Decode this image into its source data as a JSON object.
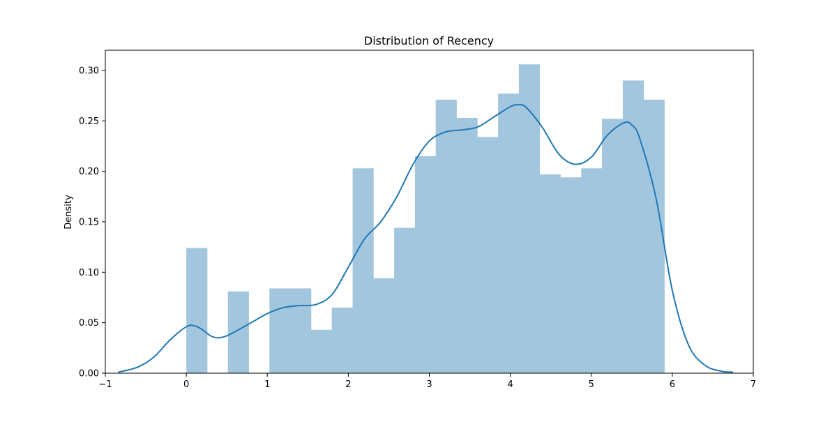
{
  "chart_data": {
    "type": "bar",
    "title": "Distribution of Recency",
    "xlabel": "",
    "ylabel": "Density",
    "xlim": [
      -1,
      7
    ],
    "ylim": [
      0,
      0.32
    ],
    "xticks": [
      "−1",
      "0",
      "1",
      "2",
      "3",
      "4",
      "5",
      "6",
      "7"
    ],
    "xtick_values": [
      -1,
      0,
      1,
      2,
      3,
      4,
      5,
      6,
      7
    ],
    "yticks": [
      "0.00",
      "0.05",
      "0.10",
      "0.15",
      "0.20",
      "0.25",
      "0.30"
    ],
    "ytick_values": [
      0,
      0.05,
      0.1,
      0.15,
      0.2,
      0.25,
      0.3
    ],
    "grid": false,
    "histogram": {
      "bin_edges": [
        0,
        0.2566,
        0.5132,
        0.7698,
        1.0264,
        1.283,
        1.5396,
        1.7962,
        2.0528,
        2.3094,
        2.566,
        2.8226,
        3.0792,
        3.3358,
        3.5924,
        3.849,
        4.1056,
        4.3622,
        4.6188,
        4.8754,
        5.132,
        5.3886,
        5.6452,
        5.9018
      ],
      "values": [
        0.124,
        0,
        0.081,
        0,
        0.084,
        0.084,
        0.043,
        0.065,
        0.203,
        0.094,
        0.144,
        0.215,
        0.271,
        0.253,
        0.234,
        0.277,
        0.306,
        0.197,
        0.194,
        0.203,
        0.252,
        0.29,
        0.271
      ],
      "color": "#a3c6df"
    },
    "kde": {
      "x": [
        -0.84,
        -0.6,
        -0.4,
        -0.2,
        0.0,
        0.1,
        0.2,
        0.3,
        0.4,
        0.5,
        0.6,
        0.8,
        1.0,
        1.2,
        1.4,
        1.6,
        1.8,
        2.0,
        2.2,
        2.4,
        2.6,
        2.8,
        3.0,
        3.2,
        3.4,
        3.6,
        3.8,
        4.0,
        4.1,
        4.2,
        4.4,
        4.6,
        4.8,
        5.0,
        5.2,
        5.4,
        5.5,
        5.6,
        5.8,
        6.0,
        6.2,
        6.4,
        6.6,
        6.75
      ],
      "y": [
        0.001,
        0.006,
        0.016,
        0.033,
        0.046,
        0.047,
        0.043,
        0.037,
        0.035,
        0.037,
        0.041,
        0.05,
        0.059,
        0.065,
        0.067,
        0.068,
        0.078,
        0.105,
        0.133,
        0.15,
        0.175,
        0.207,
        0.23,
        0.239,
        0.241,
        0.244,
        0.254,
        0.264,
        0.266,
        0.263,
        0.243,
        0.217,
        0.207,
        0.214,
        0.236,
        0.248,
        0.246,
        0.232,
        0.173,
        0.082,
        0.028,
        0.008,
        0.002,
        0.001
      ],
      "color": "#1f77b4"
    }
  }
}
